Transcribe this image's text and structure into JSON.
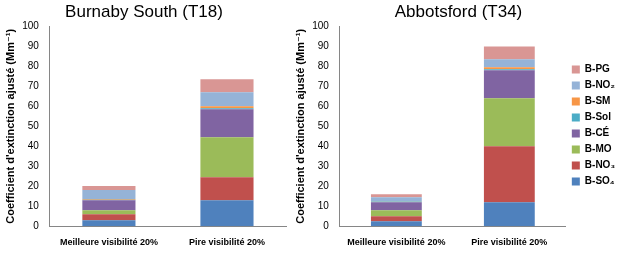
{
  "chart_data": [
    {
      "type": "bar",
      "title": "Burnaby South (T18)",
      "y_label": "Coefficient d'extinction ajusté (Mm⁻¹)",
      "categories": [
        "Meilleure visibilité 20%",
        "Pire visibilité 20%"
      ],
      "stacked": true,
      "grid": false,
      "ylim": [
        0,
        100
      ],
      "yticks": [
        0,
        10,
        20,
        30,
        40,
        50,
        60,
        70,
        80,
        90,
        100
      ],
      "series": [
        {
          "name": "B-SO₄",
          "color": "#4f81bd",
          "values": [
            3,
            13
          ]
        },
        {
          "name": "B-NO₃",
          "color": "#c0504d",
          "values": [
            3,
            11.5
          ]
        },
        {
          "name": "B-MO",
          "color": "#9bbb59",
          "values": [
            2,
            20
          ]
        },
        {
          "name": "B-CÉ",
          "color": "#8064a2",
          "values": [
            5,
            14
          ]
        },
        {
          "name": "B-Sol",
          "color": "#4bacc6",
          "values": [
            0.3,
            0.5
          ]
        },
        {
          "name": "B-SM",
          "color": "#f79646",
          "values": [
            0.3,
            1
          ]
        },
        {
          "name": "B-NO₂",
          "color": "#95b3d7",
          "values": [
            4.5,
            7
          ]
        },
        {
          "name": "B-PG",
          "color": "#d99694",
          "values": [
            2,
            6.5
          ]
        }
      ]
    },
    {
      "type": "bar",
      "title": "Abbotsford (T34)",
      "y_label": "Coefficient d'extinction ajusté (Mm⁻¹)",
      "categories": [
        "Meilleure visibilité 20%",
        "Pire visibilité 20%"
      ],
      "stacked": true,
      "grid": false,
      "legend": "right",
      "ylim": [
        0,
        100
      ],
      "yticks": [
        0,
        10,
        20,
        30,
        40,
        50,
        60,
        70,
        80,
        90,
        100
      ],
      "series": [
        {
          "name": "B-SO₄",
          "color": "#4f81bd",
          "values": [
            2.5,
            12
          ]
        },
        {
          "name": "B-NO₃",
          "color": "#c0504d",
          "values": [
            2.5,
            28
          ]
        },
        {
          "name": "B-MO",
          "color": "#9bbb59",
          "values": [
            3,
            24
          ]
        },
        {
          "name": "B-CÉ",
          "color": "#8064a2",
          "values": [
            4,
            14
          ]
        },
        {
          "name": "B-Sol",
          "color": "#4bacc6",
          "values": [
            0.3,
            0.5
          ]
        },
        {
          "name": "B-SM",
          "color": "#f79646",
          "values": [
            0.2,
            1
          ]
        },
        {
          "name": "B-NO₂",
          "color": "#95b3d7",
          "values": [
            2,
            4
          ]
        },
        {
          "name": "B-PG",
          "color": "#d99694",
          "values": [
            1.5,
            6.5
          ]
        }
      ]
    }
  ]
}
